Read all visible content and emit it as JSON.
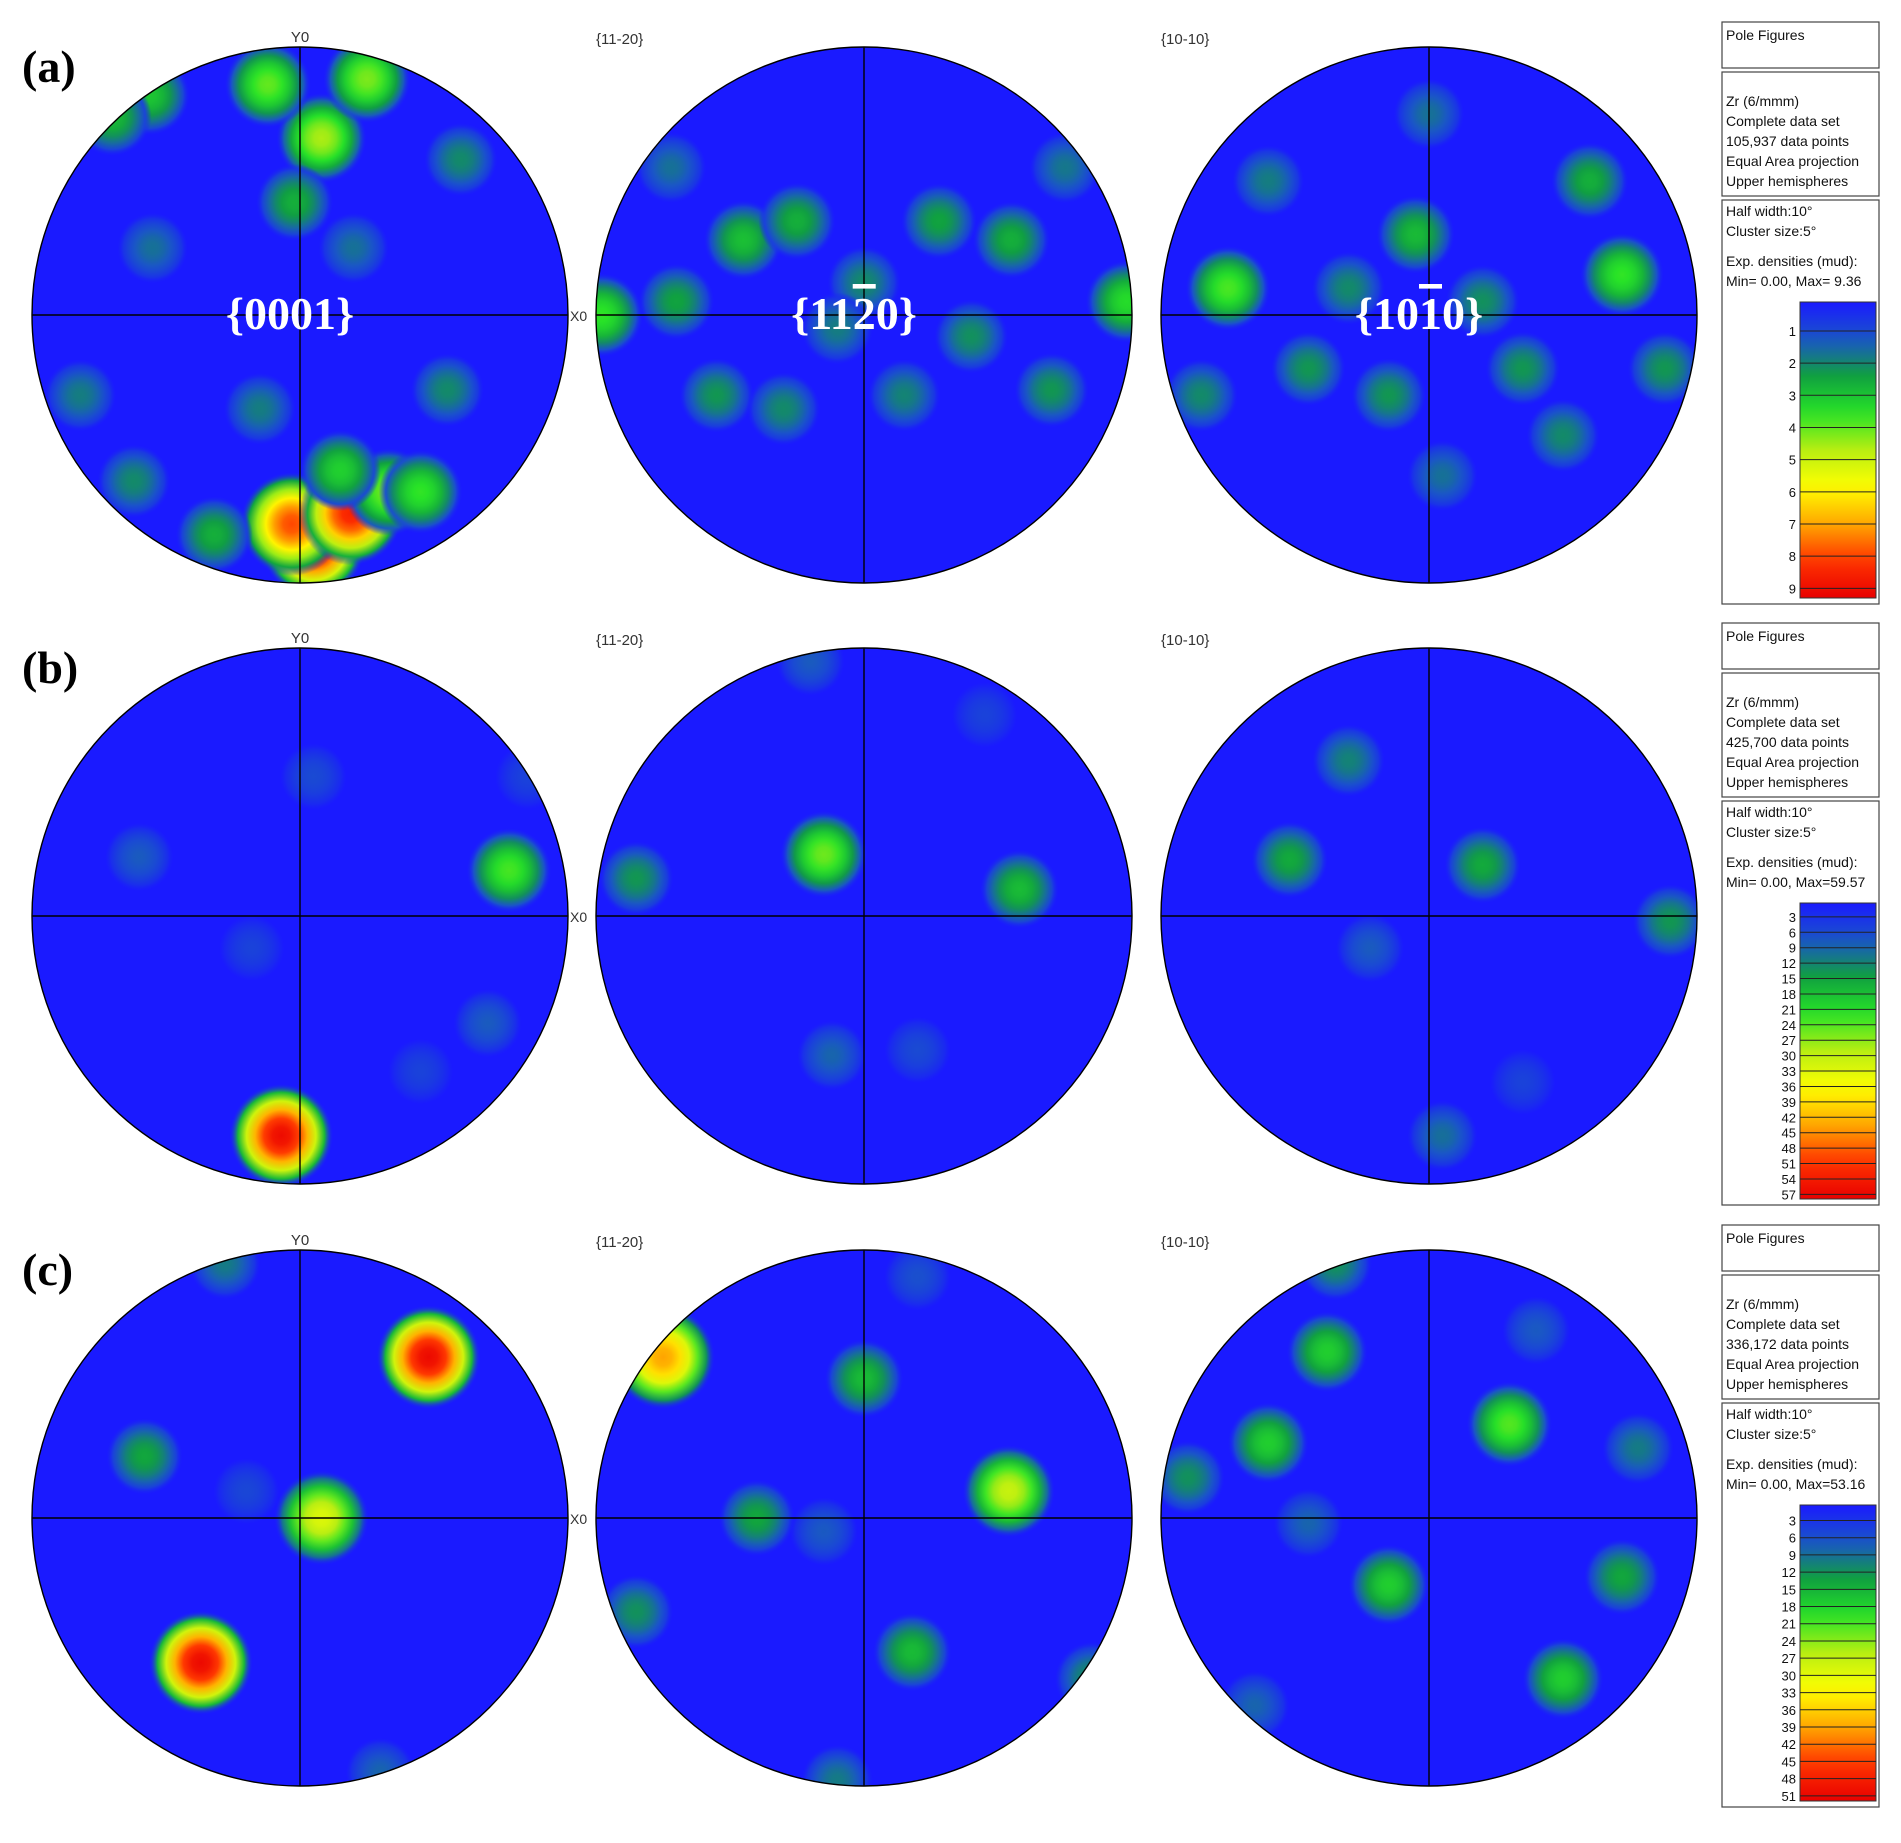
{
  "chart_data": [
    {
      "type": "heatmap",
      "panel": "(a)",
      "plots": [
        {
          "header": "Y0",
          "side_label": "X0",
          "plane": "{0001}",
          "peaks": [
            {
              "x": 0.05,
              "y": -0.86,
              "v": 9.3
            },
            {
              "x": -0.03,
              "y": -0.78,
              "v": 8.0
            },
            {
              "x": 0.19,
              "y": -0.74,
              "v": 8.6
            },
            {
              "x": 0.33,
              "y": -0.66,
              "v": 4.2
            },
            {
              "x": 0.45,
              "y": -0.66,
              "v": 3.6
            },
            {
              "x": 0.15,
              "y": -0.58,
              "v": 3.2
            },
            {
              "x": -0.32,
              "y": -0.82,
              "v": 2.6
            },
            {
              "x": -0.62,
              "y": -0.62,
              "v": 2.0
            },
            {
              "x": 0.08,
              "y": 0.66,
              "v": 4.6
            },
            {
              "x": -0.12,
              "y": 0.86,
              "v": 4.0
            },
            {
              "x": 0.25,
              "y": 0.88,
              "v": 4.2
            },
            {
              "x": -0.56,
              "y": 0.82,
              "v": 3.0
            },
            {
              "x": -0.7,
              "y": 0.74,
              "v": 2.8
            },
            {
              "x": -0.02,
              "y": 0.42,
              "v": 2.6
            },
            {
              "x": 0.6,
              "y": 0.58,
              "v": 2.0
            },
            {
              "x": 0.55,
              "y": -0.28,
              "v": 2.0
            },
            {
              "x": -0.15,
              "y": -0.35,
              "v": 1.8
            },
            {
              "x": -0.55,
              "y": 0.25,
              "v": 1.6
            },
            {
              "x": 0.2,
              "y": 0.25,
              "v": 1.6
            },
            {
              "x": -0.82,
              "y": -0.3,
              "v": 1.8
            }
          ]
        },
        {
          "header": "{11-20}",
          "side_label": "",
          "plane": "{11̅2̅ }",
          "peaks": [
            {
              "x": -0.98,
              "y": 0.0,
              "v": 3.6
            },
            {
              "x": 0.98,
              "y": 0.05,
              "v": 3.4
            },
            {
              "x": -0.45,
              "y": 0.28,
              "v": 2.9
            },
            {
              "x": -0.25,
              "y": 0.35,
              "v": 2.6
            },
            {
              "x": 0.28,
              "y": 0.35,
              "v": 2.4
            },
            {
              "x": 0.55,
              "y": 0.28,
              "v": 2.6
            },
            {
              "x": -0.7,
              "y": 0.05,
              "v": 2.4
            },
            {
              "x": -0.55,
              "y": -0.3,
              "v": 2.2
            },
            {
              "x": 0.7,
              "y": -0.28,
              "v": 2.2
            },
            {
              "x": -0.3,
              "y": -0.35,
              "v": 2.0
            },
            {
              "x": 0.15,
              "y": -0.3,
              "v": 1.9
            },
            {
              "x": 0.4,
              "y": -0.08,
              "v": 2.1
            },
            {
              "x": 0.0,
              "y": 0.12,
              "v": 2.0
            },
            {
              "x": -0.1,
              "y": -0.05,
              "v": 1.8
            },
            {
              "x": 0.75,
              "y": 0.55,
              "v": 1.7
            },
            {
              "x": -0.72,
              "y": 0.55,
              "v": 1.6
            }
          ]
        },
        {
          "header": "{10-10}",
          "side_label": "",
          "plane": "{10̅1̅0}",
          "peaks": [
            {
              "x": -0.75,
              "y": 0.1,
              "v": 3.8
            },
            {
              "x": 0.72,
              "y": 0.15,
              "v": 3.6
            },
            {
              "x": -0.05,
              "y": 0.3,
              "v": 2.8
            },
            {
              "x": 0.6,
              "y": 0.5,
              "v": 2.6
            },
            {
              "x": -0.45,
              "y": -0.2,
              "v": 2.2
            },
            {
              "x": 0.35,
              "y": -0.2,
              "v": 2.2
            },
            {
              "x": -0.15,
              "y": -0.3,
              "v": 2.2
            },
            {
              "x": 0.5,
              "y": -0.45,
              "v": 2.0
            },
            {
              "x": -0.6,
              "y": 0.5,
              "v": 1.8
            },
            {
              "x": 0.2,
              "y": 0.05,
              "v": 2.1
            },
            {
              "x": -0.3,
              "y": 0.1,
              "v": 2.0
            },
            {
              "x": 0.88,
              "y": -0.2,
              "v": 2.2
            },
            {
              "x": -0.85,
              "y": -0.3,
              "v": 2.0
            },
            {
              "x": 0.05,
              "y": -0.6,
              "v": 1.6
            },
            {
              "x": 0.0,
              "y": 0.75,
              "v": 1.6
            }
          ]
        }
      ],
      "legend": {
        "box1": [
          "Pole Figures"
        ],
        "box2": [
          "Zr (6/mmm)",
          "Complete data set",
          "105,937 data points",
          "Equal Area projection",
          "Upper hemispheres"
        ],
        "box3": [
          "Half width:10°",
          "Cluster size:5°",
          "",
          "Exp. densities (mud):",
          "Min= 0.00, Max= 9.36"
        ],
        "ticks": [
          "1",
          "2",
          "3",
          "4",
          "5",
          "6",
          "7",
          "8",
          "9"
        ],
        "max": 9.36
      }
    },
    {
      "type": "heatmap",
      "panel": "(b)",
      "plots": [
        {
          "header": "Y0",
          "side_label": "X0",
          "plane": "",
          "peaks": [
            {
              "x": -0.07,
              "y": -0.82,
              "v": 58
            },
            {
              "x": 0.78,
              "y": 0.17,
              "v": 24
            },
            {
              "x": -0.6,
              "y": 0.22,
              "v": 8
            },
            {
              "x": 0.7,
              "y": -0.4,
              "v": 8
            },
            {
              "x": 0.05,
              "y": 0.52,
              "v": 6
            },
            {
              "x": -0.18,
              "y": -0.12,
              "v": 5
            },
            {
              "x": 0.45,
              "y": -0.58,
              "v": 5
            },
            {
              "x": 0.85,
              "y": 0.52,
              "v": 5
            }
          ]
        },
        {
          "header": "{11-20}",
          "side_label": "",
          "plane": "",
          "peaks": [
            {
              "x": -0.15,
              "y": 0.23,
              "v": 26
            },
            {
              "x": 0.58,
              "y": 0.1,
              "v": 18
            },
            {
              "x": -0.85,
              "y": 0.14,
              "v": 14
            },
            {
              "x": -0.12,
              "y": -0.52,
              "v": 9
            },
            {
              "x": 0.2,
              "y": -0.5,
              "v": 6
            },
            {
              "x": -0.2,
              "y": 0.95,
              "v": 8
            },
            {
              "x": 0.45,
              "y": 0.75,
              "v": 5
            }
          ]
        },
        {
          "header": "{10-10}",
          "side_label": "",
          "plane": "",
          "peaks": [
            {
              "x": -0.52,
              "y": 0.21,
              "v": 16
            },
            {
              "x": 0.2,
              "y": 0.19,
              "v": 16
            },
            {
              "x": -0.3,
              "y": 0.58,
              "v": 12
            },
            {
              "x": 0.9,
              "y": -0.02,
              "v": 14
            },
            {
              "x": -0.22,
              "y": -0.12,
              "v": 8
            },
            {
              "x": 0.05,
              "y": -0.82,
              "v": 10
            },
            {
              "x": 0.35,
              "y": -0.62,
              "v": 5
            }
          ]
        }
      ],
      "legend": {
        "box1": [
          "Pole Figures"
        ],
        "box2": [
          "Zr (6/mmm)",
          "Complete data set",
          "425,700 data points",
          "Equal Area projection",
          "Upper hemispheres"
        ],
        "box3": [
          "Half width:10°",
          "Cluster size:5°",
          "",
          "Exp. densities (mud):",
          "Min= 0.00, Max=59.57"
        ],
        "ticks": [
          "3",
          "6",
          "9",
          "12",
          "15",
          "18",
          "21",
          "24",
          "27",
          "30",
          "33",
          "36",
          "39",
          "42",
          "45",
          "48",
          "51",
          "54",
          "57"
        ],
        "max": 59.57
      }
    },
    {
      "type": "heatmap",
      "panel": "(c)",
      "plots": [
        {
          "header": "Y0",
          "side_label": "X0",
          "plane": "",
          "peaks": [
            {
              "x": 0.48,
              "y": 0.6,
              "v": 52
            },
            {
              "x": -0.37,
              "y": -0.54,
              "v": 52
            },
            {
              "x": 0.08,
              "y": 0.0,
              "v": 30
            },
            {
              "x": -0.58,
              "y": 0.23,
              "v": 14
            },
            {
              "x": -0.28,
              "y": 0.95,
              "v": 10
            },
            {
              "x": 0.3,
              "y": -0.95,
              "v": 8
            },
            {
              "x": -0.2,
              "y": 0.1,
              "v": 5
            }
          ]
        },
        {
          "header": "{11-20}",
          "side_label": "",
          "plane": "",
          "peaks": [
            {
              "x": -0.75,
              "y": 0.6,
              "v": 40
            },
            {
              "x": 0.54,
              "y": 0.1,
              "v": 28
            },
            {
              "x": 0.0,
              "y": 0.52,
              "v": 16
            },
            {
              "x": -0.4,
              "y": 0.0,
              "v": 14
            },
            {
              "x": 0.18,
              "y": -0.5,
              "v": 16
            },
            {
              "x": -0.85,
              "y": -0.35,
              "v": 12
            },
            {
              "x": 0.85,
              "y": -0.6,
              "v": 12
            },
            {
              "x": -0.15,
              "y": -0.05,
              "v": 7
            },
            {
              "x": -0.1,
              "y": -0.98,
              "v": 10
            },
            {
              "x": 0.2,
              "y": 0.9,
              "v": 6
            }
          ]
        },
        {
          "header": "{10-10}",
          "side_label": "",
          "plane": "",
          "peaks": [
            {
              "x": 0.3,
              "y": 0.35,
              "v": 22
            },
            {
              "x": -0.6,
              "y": 0.28,
              "v": 18
            },
            {
              "x": -0.38,
              "y": 0.62,
              "v": 18
            },
            {
              "x": -0.15,
              "y": -0.25,
              "v": 18
            },
            {
              "x": 0.5,
              "y": -0.6,
              "v": 18
            },
            {
              "x": 0.72,
              "y": -0.22,
              "v": 14
            },
            {
              "x": -0.9,
              "y": 0.15,
              "v": 12
            },
            {
              "x": -0.35,
              "y": 0.95,
              "v": 12
            },
            {
              "x": 0.78,
              "y": 0.26,
              "v": 10
            },
            {
              "x": -0.45,
              "y": -0.02,
              "v": 8
            },
            {
              "x": 0.4,
              "y": 0.7,
              "v": 7
            },
            {
              "x": -0.65,
              "y": -0.7,
              "v": 8
            }
          ]
        }
      ],
      "legend": {
        "box1": [
          "Pole Figures"
        ],
        "box2": [
          "Zr (6/mmm)",
          "Complete data set",
          "336,172 data points",
          "Equal Area projection",
          "Upper hemispheres"
        ],
        "box3": [
          "Half width:10°",
          "Cluster size:5°",
          "",
          "Exp. densities (mud):",
          "Min= 0.00, Max=53.16"
        ],
        "ticks": [
          "3",
          "6",
          "9",
          "12",
          "15",
          "18",
          "21",
          "24",
          "27",
          "30",
          "33",
          "36",
          "39",
          "42",
          "45",
          "48",
          "51"
        ],
        "max": 53.16
      }
    }
  ],
  "colormap": [
    "#1a1aff",
    "#1a55c8",
    "#10a040",
    "#27e327",
    "#b8ee12",
    "#ffff00",
    "#ffa600",
    "#ff3300",
    "#e80000"
  ]
}
